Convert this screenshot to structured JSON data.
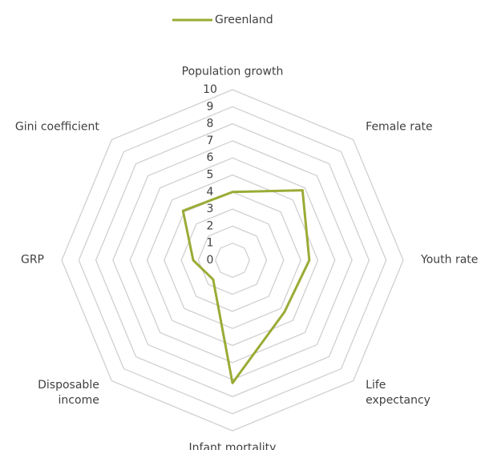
{
  "chart_data": {
    "type": "radar",
    "categories": [
      "Population growth",
      "Female rate",
      "Youth rate",
      "Life expectancy",
      "Infant mortality",
      "Disposable income",
      "GRP",
      "Gini coefficient"
    ],
    "series": [
      {
        "name": "Greenland",
        "color": "#9bab36",
        "values": [
          4,
          5.8,
          4.5,
          4.3,
          7.2,
          1.6,
          2.3,
          4.1
        ]
      }
    ],
    "rlim": [
      0,
      10
    ],
    "rticks": [
      0,
      1,
      2,
      3,
      4,
      5,
      6,
      7,
      8,
      9,
      10
    ],
    "grid": true,
    "legend": "top"
  }
}
